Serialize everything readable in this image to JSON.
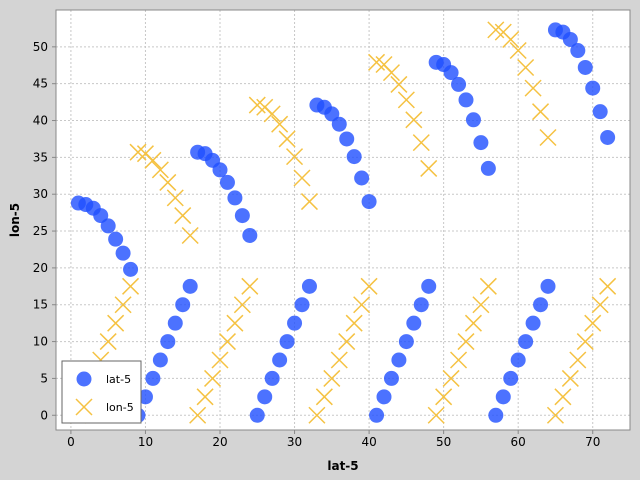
{
  "chart_data": {
    "type": "scatter",
    "xlabel": "lat-5",
    "ylabel": "lon-5",
    "xlim": [
      -2,
      75
    ],
    "ylim": [
      -2,
      55
    ],
    "xticks": [
      0,
      10,
      20,
      30,
      40,
      50,
      60,
      70
    ],
    "yticks": [
      0,
      5,
      10,
      15,
      20,
      25,
      30,
      35,
      40,
      45,
      50
    ],
    "grid": true,
    "legend_position": "bottom-left",
    "series": [
      {
        "name": "lat-5",
        "marker": "circle",
        "color": "#1f4fff",
        "points": [
          [
            1,
            28.8
          ],
          [
            2,
            28.6
          ],
          [
            3,
            28.1
          ],
          [
            4,
            27.1
          ],
          [
            5,
            25.7
          ],
          [
            6,
            23.9
          ],
          [
            7,
            22.0
          ],
          [
            8,
            19.8
          ],
          [
            9,
            0
          ],
          [
            10,
            2.5
          ],
          [
            11,
            5
          ],
          [
            12,
            7.5
          ],
          [
            13,
            10
          ],
          [
            14,
            12.5
          ],
          [
            15,
            15
          ],
          [
            16,
            17.5
          ],
          [
            17,
            35.7
          ],
          [
            18,
            35.5
          ],
          [
            19,
            34.6
          ],
          [
            20,
            33.3
          ],
          [
            21,
            31.6
          ],
          [
            22,
            29.5
          ],
          [
            23,
            27.1
          ],
          [
            24,
            24.4
          ],
          [
            25,
            0
          ],
          [
            26,
            2.5
          ],
          [
            27,
            5
          ],
          [
            28,
            7.5
          ],
          [
            29,
            10
          ],
          [
            30,
            12.5
          ],
          [
            31,
            15
          ],
          [
            32,
            17.5
          ],
          [
            33,
            42.1
          ],
          [
            34,
            41.8
          ],
          [
            35,
            40.9
          ],
          [
            36,
            39.5
          ],
          [
            37,
            37.5
          ],
          [
            38,
            35.1
          ],
          [
            39,
            32.2
          ],
          [
            40,
            29.0
          ],
          [
            41,
            0
          ],
          [
            42,
            2.5
          ],
          [
            43,
            5
          ],
          [
            44,
            7.5
          ],
          [
            45,
            10
          ],
          [
            46,
            12.5
          ],
          [
            47,
            15
          ],
          [
            48,
            17.5
          ],
          [
            49,
            47.9
          ],
          [
            50,
            47.6
          ],
          [
            51,
            46.5
          ],
          [
            52,
            44.9
          ],
          [
            53,
            42.8
          ],
          [
            54,
            40.1
          ],
          [
            55,
            37.0
          ],
          [
            56,
            33.5
          ],
          [
            57,
            0
          ],
          [
            58,
            2.5
          ],
          [
            59,
            5
          ],
          [
            60,
            7.5
          ],
          [
            61,
            10
          ],
          [
            62,
            12.5
          ],
          [
            63,
            15
          ],
          [
            64,
            17.5
          ],
          [
            65,
            52.3
          ],
          [
            66,
            52.0
          ],
          [
            67,
            51.0
          ],
          [
            68,
            49.5
          ],
          [
            69,
            47.2
          ],
          [
            70,
            44.4
          ],
          [
            71,
            41.2
          ],
          [
            72,
            37.7
          ]
        ]
      },
      {
        "name": "lon-5",
        "marker": "x",
        "color": "#f5c242",
        "points": [
          [
            1,
            0
          ],
          [
            2,
            2.5
          ],
          [
            3,
            5
          ],
          [
            4,
            7.5
          ],
          [
            5,
            10
          ],
          [
            6,
            12.5
          ],
          [
            7,
            15
          ],
          [
            8,
            17.5
          ],
          [
            9,
            35.7
          ],
          [
            10,
            35.5
          ],
          [
            11,
            34.6
          ],
          [
            12,
            33.3
          ],
          [
            13,
            31.6
          ],
          [
            14,
            29.5
          ],
          [
            15,
            27.1
          ],
          [
            16,
            24.4
          ],
          [
            17,
            0
          ],
          [
            18,
            2.5
          ],
          [
            19,
            5
          ],
          [
            20,
            7.5
          ],
          [
            21,
            10
          ],
          [
            22,
            12.5
          ],
          [
            23,
            15
          ],
          [
            24,
            17.5
          ],
          [
            25,
            42.1
          ],
          [
            26,
            41.8
          ],
          [
            27,
            40.9
          ],
          [
            28,
            39.5
          ],
          [
            29,
            37.5
          ],
          [
            30,
            35.1
          ],
          [
            31,
            32.2
          ],
          [
            32,
            29.0
          ],
          [
            33,
            0
          ],
          [
            34,
            2.5
          ],
          [
            35,
            5
          ],
          [
            36,
            7.5
          ],
          [
            37,
            10
          ],
          [
            38,
            12.5
          ],
          [
            39,
            15
          ],
          [
            40,
            17.5
          ],
          [
            41,
            47.9
          ],
          [
            42,
            47.6
          ],
          [
            43,
            46.5
          ],
          [
            44,
            44.9
          ],
          [
            45,
            42.8
          ],
          [
            46,
            40.1
          ],
          [
            47,
            37.0
          ],
          [
            48,
            33.5
          ],
          [
            49,
            0
          ],
          [
            50,
            2.5
          ],
          [
            51,
            5
          ],
          [
            52,
            7.5
          ],
          [
            53,
            10
          ],
          [
            54,
            12.5
          ],
          [
            55,
            15
          ],
          [
            56,
            17.5
          ],
          [
            57,
            52.3
          ],
          [
            58,
            52.0
          ],
          [
            59,
            51.0
          ],
          [
            60,
            49.5
          ],
          [
            61,
            47.2
          ],
          [
            62,
            44.4
          ],
          [
            63,
            41.2
          ],
          [
            64,
            37.7
          ],
          [
            65,
            0
          ],
          [
            66,
            2.5
          ],
          [
            67,
            5
          ],
          [
            68,
            7.5
          ],
          [
            69,
            10
          ],
          [
            70,
            12.5
          ],
          [
            71,
            15
          ],
          [
            72,
            17.5
          ]
        ]
      }
    ]
  }
}
